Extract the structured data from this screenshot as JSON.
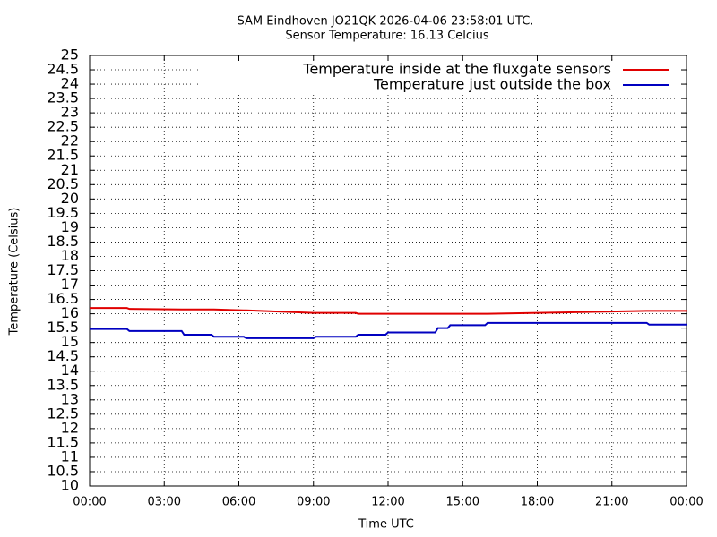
{
  "chart_data": {
    "type": "line",
    "title": "SAM Eindhoven JO21QK 2026-04-06 23:58:01 UTC.",
    "subtitle": "Sensor Temperature: 16.13 Celcius",
    "x_label": "Time UTC",
    "y_label": "Temperature (Celsius)",
    "x": [
      0,
      1.5,
      1.6,
      3.7,
      3.8,
      4.9,
      5.0,
      6.2,
      6.3,
      9.0,
      9.1,
      10.7,
      10.8,
      11.9,
      12.0,
      13.9,
      14.0,
      14.4,
      14.5,
      15.9,
      16.0,
      22.4,
      22.5,
      24
    ],
    "series": [
      {
        "name": "Temperature inside at the fluxgate sensors",
        "color": "#e00000",
        "values": [
          16.2,
          16.2,
          16.17,
          16.15,
          16.15,
          16.15,
          16.15,
          16.12,
          16.12,
          16.03,
          16.03,
          16.03,
          16.0,
          16.0,
          16.0,
          16.0,
          16.0,
          16.0,
          16.0,
          16.0,
          16.0,
          16.1,
          16.1,
          16.1
        ]
      },
      {
        "name": "Temperature just outside the box",
        "color": "#0000c0",
        "values": [
          15.47,
          15.47,
          15.4,
          15.4,
          15.27,
          15.27,
          15.2,
          15.2,
          15.15,
          15.15,
          15.2,
          15.2,
          15.27,
          15.27,
          15.35,
          15.35,
          15.5,
          15.5,
          15.6,
          15.6,
          15.68,
          15.68,
          15.62,
          15.62
        ]
      }
    ],
    "xlim": [
      0,
      24
    ],
    "xticks": [
      {
        "value": 0,
        "label": "00:00"
      },
      {
        "value": 3,
        "label": "03:00"
      },
      {
        "value": 6,
        "label": "06:00"
      },
      {
        "value": 9,
        "label": "09:00"
      },
      {
        "value": 12,
        "label": "12:00"
      },
      {
        "value": 15,
        "label": "15:00"
      },
      {
        "value": 18,
        "label": "18:00"
      },
      {
        "value": 21,
        "label": "21:00"
      },
      {
        "value": 24,
        "label": "00:00"
      }
    ],
    "ylim": [
      10,
      25
    ],
    "yticks": [
      10,
      10.5,
      11,
      11.5,
      12,
      12.5,
      13,
      13.5,
      14,
      14.5,
      15,
      15.5,
      16,
      16.5,
      17,
      17.5,
      18,
      18.5,
      19,
      19.5,
      20,
      20.5,
      21,
      21.5,
      22,
      22.5,
      23,
      23.5,
      24,
      24.5,
      25
    ],
    "grid": true,
    "legend": "top-right"
  }
}
